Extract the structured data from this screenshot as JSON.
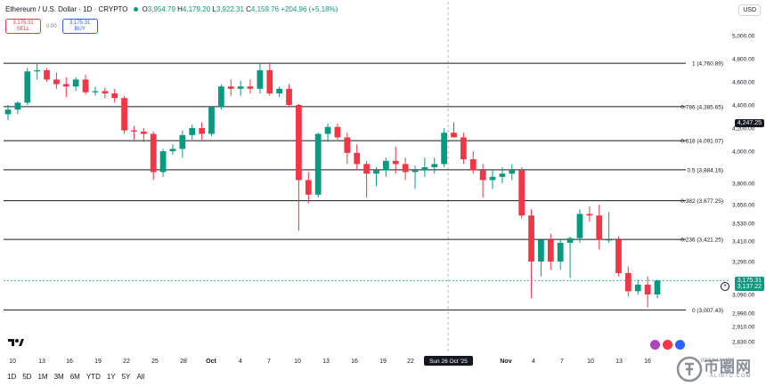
{
  "header": {
    "symbol_title": "Ethereum / U.S. Dollar · 1D · CRYPTO",
    "ohlc": {
      "o_label": "O",
      "o_value": "3,954.79",
      "h_label": "H",
      "h_value": "4,179.20",
      "l_label": "L",
      "l_value": "3,922.31",
      "c_label": "C",
      "c_value": "4,159.76",
      "change": "+204.96 (+5.18%)"
    },
    "currency_button": "USD"
  },
  "trade": {
    "sell_price": "3,175.31",
    "sell_label": "SELL",
    "spread": "0.00",
    "buy_price": "3,175.31",
    "buy_label": "BUY"
  },
  "price_axis": {
    "ticks": [
      "5,000.00",
      "4,800.00",
      "4,600.00",
      "4,400.00",
      "4,200.00",
      "4,000.00",
      "3,800.00",
      "3,650.00",
      "3,530.00",
      "3,410.00",
      "3,290.00",
      "3,090.00",
      "2,990.00",
      "2,910.00",
      "2,830.00"
    ],
    "tag_high": "4,247.25",
    "tag_current": "3,175.31",
    "tag_current2": "3,137.22"
  },
  "time_axis": {
    "ticks": [
      "10",
      "13",
      "16",
      "19",
      "22",
      "25",
      "28",
      "Oct",
      "4",
      "7",
      "10",
      "13",
      "16",
      "19",
      "22",
      "Nov",
      "4",
      "7",
      "10",
      "13",
      "16"
    ],
    "crosshair_label": "Sun 26 Oct '25"
  },
  "fib_levels": [
    {
      "label": "1 (4,760.89)",
      "value": 4760.89
    },
    {
      "label": "0.786 (4,385.65)",
      "value": 4385.65
    },
    {
      "label": "0.618 (4,091.07)",
      "value": 4091.07
    },
    {
      "label": "0.5 (3,884.16)",
      "value": 3884.16
    },
    {
      "label": "0.382 (3,677.25)",
      "value": 3677.25
    },
    {
      "label": "0.236 (3,421.25)",
      "value": 3421.25
    },
    {
      "label": "0 (3,007.43)",
      "value": 3007.43
    }
  ],
  "timeframes": [
    "1D",
    "5D",
    "1M",
    "3M",
    "6M",
    "YTD",
    "1Y",
    "5Y",
    "All"
  ],
  "watermark": {
    "text": "币圈网",
    "sub": "ALIBTC.COM",
    "clock": "03:54:44 UTC"
  },
  "colors": {
    "up": "#089981",
    "down": "#f23645",
    "fib_line": "#131722",
    "grid": "#f0f3fa",
    "current_price": "#089981"
  },
  "chart_data": {
    "type": "candlestick",
    "title": "Ethereum / U.S. Dollar · 1D · CRYPTO",
    "ylim": [
      2830,
      5050
    ],
    "candles": [
      {
        "o": 4320,
        "h": 4400,
        "l": 4270,
        "c": 4360
      },
      {
        "o": 4360,
        "h": 4430,
        "l": 4320,
        "c": 4420
      },
      {
        "o": 4420,
        "h": 4720,
        "l": 4400,
        "c": 4690
      },
      {
        "o": 4690,
        "h": 4760,
        "l": 4620,
        "c": 4700
      },
      {
        "o": 4700,
        "h": 4720,
        "l": 4600,
        "c": 4620
      },
      {
        "o": 4620,
        "h": 4680,
        "l": 4540,
        "c": 4580
      },
      {
        "o": 4580,
        "h": 4640,
        "l": 4470,
        "c": 4560
      },
      {
        "o": 4560,
        "h": 4640,
        "l": 4520,
        "c": 4620
      },
      {
        "o": 4620,
        "h": 4660,
        "l": 4490,
        "c": 4510
      },
      {
        "o": 4510,
        "h": 4560,
        "l": 4480,
        "c": 4520
      },
      {
        "o": 4520,
        "h": 4550,
        "l": 4460,
        "c": 4500
      },
      {
        "o": 4500,
        "h": 4540,
        "l": 4420,
        "c": 4460
      },
      {
        "o": 4460,
        "h": 4480,
        "l": 4150,
        "c": 4180
      },
      {
        "o": 4180,
        "h": 4220,
        "l": 4100,
        "c": 4170
      },
      {
        "o": 4170,
        "h": 4200,
        "l": 4080,
        "c": 4150
      },
      {
        "o": 4150,
        "h": 4170,
        "l": 3820,
        "c": 3870
      },
      {
        "o": 3870,
        "h": 4020,
        "l": 3840,
        "c": 4000
      },
      {
        "o": 4000,
        "h": 4060,
        "l": 3980,
        "c": 4020
      },
      {
        "o": 4020,
        "h": 4180,
        "l": 3960,
        "c": 4140
      },
      {
        "o": 4140,
        "h": 4230,
        "l": 4100,
        "c": 4200
      },
      {
        "o": 4200,
        "h": 4250,
        "l": 4100,
        "c": 4150
      },
      {
        "o": 4150,
        "h": 4390,
        "l": 4130,
        "c": 4380
      },
      {
        "o": 4380,
        "h": 4580,
        "l": 4360,
        "c": 4560
      },
      {
        "o": 4560,
        "h": 4620,
        "l": 4480,
        "c": 4540
      },
      {
        "o": 4540,
        "h": 4610,
        "l": 4480,
        "c": 4560
      },
      {
        "o": 4560,
        "h": 4620,
        "l": 4500,
        "c": 4540
      },
      {
        "o": 4540,
        "h": 4760,
        "l": 4500,
        "c": 4700
      },
      {
        "o": 4700,
        "h": 4770,
        "l": 4480,
        "c": 4500
      },
      {
        "o": 4500,
        "h": 4560,
        "l": 4470,
        "c": 4540
      },
      {
        "o": 4540,
        "h": 4580,
        "l": 4380,
        "c": 4400
      },
      {
        "o": 4400,
        "h": 4410,
        "l": 3480,
        "c": 3820
      },
      {
        "o": 3820,
        "h": 3870,
        "l": 3660,
        "c": 3720
      },
      {
        "o": 3720,
        "h": 4160,
        "l": 3700,
        "c": 4150
      },
      {
        "o": 4150,
        "h": 4240,
        "l": 4080,
        "c": 4210
      },
      {
        "o": 4210,
        "h": 4240,
        "l": 4100,
        "c": 4120
      },
      {
        "o": 4120,
        "h": 4160,
        "l": 3920,
        "c": 3990
      },
      {
        "o": 3990,
        "h": 4060,
        "l": 3880,
        "c": 3920
      },
      {
        "o": 3920,
        "h": 3940,
        "l": 3700,
        "c": 3860
      },
      {
        "o": 3860,
        "h": 3900,
        "l": 3780,
        "c": 3880
      },
      {
        "o": 3880,
        "h": 3960,
        "l": 3840,
        "c": 3940
      },
      {
        "o": 3940,
        "h": 4040,
        "l": 3860,
        "c": 3920
      },
      {
        "o": 3920,
        "h": 3960,
        "l": 3820,
        "c": 3870
      },
      {
        "o": 3870,
        "h": 3910,
        "l": 3760,
        "c": 3880
      },
      {
        "o": 3880,
        "h": 3960,
        "l": 3840,
        "c": 3900
      },
      {
        "o": 3900,
        "h": 3960,
        "l": 3860,
        "c": 3920
      },
      {
        "o": 3920,
        "h": 4200,
        "l": 3900,
        "c": 4160
      },
      {
        "o": 4160,
        "h": 4250,
        "l": 4120,
        "c": 4120
      },
      {
        "o": 4120,
        "h": 4160,
        "l": 3920,
        "c": 3950
      },
      {
        "o": 3950,
        "h": 4000,
        "l": 3860,
        "c": 3880
      },
      {
        "o": 3880,
        "h": 3920,
        "l": 3700,
        "c": 3820
      },
      {
        "o": 3820,
        "h": 3880,
        "l": 3760,
        "c": 3840
      },
      {
        "o": 3840,
        "h": 3900,
        "l": 3800,
        "c": 3860
      },
      {
        "o": 3860,
        "h": 3920,
        "l": 3820,
        "c": 3880
      },
      {
        "o": 3880,
        "h": 3900,
        "l": 3560,
        "c": 3580
      },
      {
        "o": 3580,
        "h": 3620,
        "l": 3070,
        "c": 3290
      },
      {
        "o": 3290,
        "h": 3420,
        "l": 3200,
        "c": 3420
      },
      {
        "o": 3420,
        "h": 3460,
        "l": 3240,
        "c": 3290
      },
      {
        "o": 3290,
        "h": 3420,
        "l": 3240,
        "c": 3400
      },
      {
        "o": 3400,
        "h": 3440,
        "l": 3190,
        "c": 3430
      },
      {
        "o": 3430,
        "h": 3620,
        "l": 3400,
        "c": 3590
      },
      {
        "o": 3590,
        "h": 3640,
        "l": 3540,
        "c": 3580
      },
      {
        "o": 3580,
        "h": 3650,
        "l": 3360,
        "c": 3420
      },
      {
        "o": 3420,
        "h": 3600,
        "l": 3400,
        "c": 3420
      },
      {
        "o": 3420,
        "h": 3440,
        "l": 3200,
        "c": 3220
      },
      {
        "o": 3220,
        "h": 3260,
        "l": 3080,
        "c": 3110
      },
      {
        "o": 3110,
        "h": 3180,
        "l": 3090,
        "c": 3150
      },
      {
        "o": 3150,
        "h": 3200,
        "l": 3020,
        "c": 3090
      },
      {
        "o": 3090,
        "h": 3180,
        "l": 3070,
        "c": 3175
      }
    ]
  }
}
